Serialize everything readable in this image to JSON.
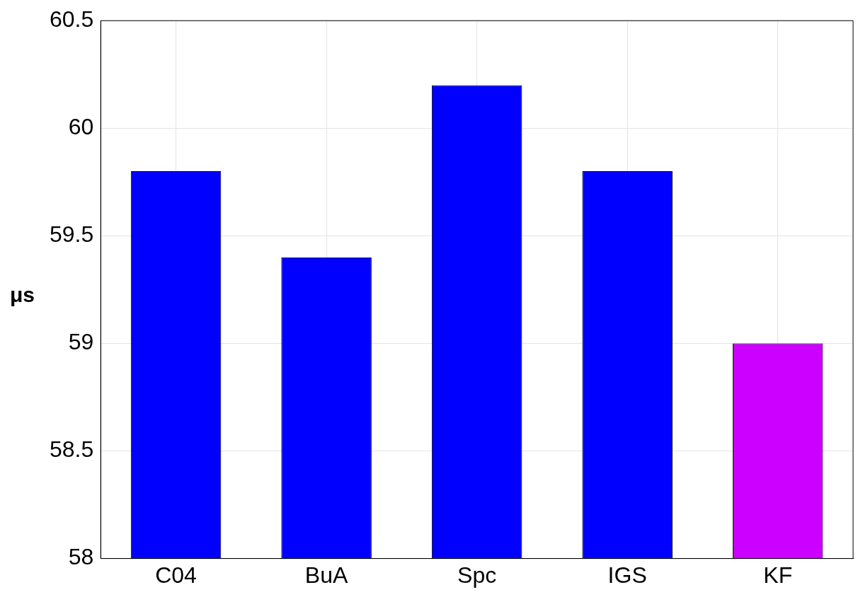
{
  "chart_data": {
    "type": "bar",
    "ylabel": "μs",
    "categories": [
      "C04",
      "BuA",
      "Spc",
      "IGS",
      "KF"
    ],
    "values": [
      59.8,
      59.4,
      60.2,
      59.8,
      59.0
    ],
    "colors": [
      "#0000ff",
      "#0000ff",
      "#0000ff",
      "#0000ff",
      "#cc00ff"
    ],
    "ylim": [
      58,
      60.5
    ],
    "yticks": [
      58,
      58.5,
      59,
      59.5,
      60,
      60.5
    ],
    "grid": true
  }
}
